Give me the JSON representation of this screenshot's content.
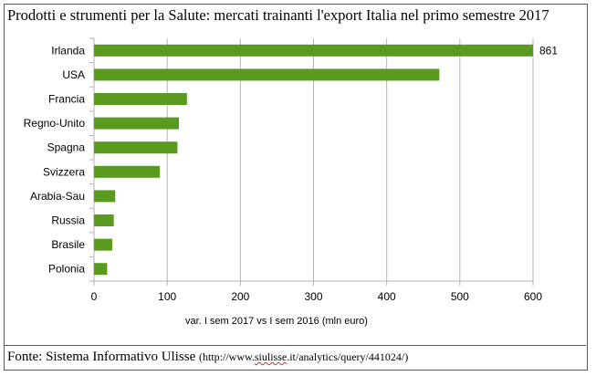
{
  "title": "Prodotti e strumenti per la Salute: mercati trainanti l'export Italia nel primo semestre 2017",
  "source": {
    "label": "Fonte: Sistema Informativo Ulisse",
    "url_prefix": "(http://www.",
    "url_domain": "siulisse",
    "url_suffix": ".it/analytics/query/441024/)"
  },
  "chart_data": {
    "type": "bar",
    "orientation": "horizontal",
    "categories": [
      "Irlanda",
      "USA",
      "Francia",
      "Regno-Unito",
      "Spagna",
      "Svizzera",
      "Arabia-Sau",
      "Russia",
      "Brasile",
      "Polonia"
    ],
    "values": [
      861,
      472,
      127,
      116,
      114,
      90,
      29,
      27,
      25,
      18
    ],
    "data_labels": [
      "861",
      "",
      "",
      "",
      "",
      "",
      "",
      "",
      "",
      ""
    ],
    "xlabel": "var. I sem 2017 vs I sem 2016 (mln euro)",
    "ylabel": "",
    "xlim": [
      0,
      600
    ],
    "xticks": [
      0,
      100,
      200,
      300,
      400,
      500,
      600
    ],
    "grid": true,
    "legend": "none",
    "bar_color": "#5a9a1f"
  }
}
